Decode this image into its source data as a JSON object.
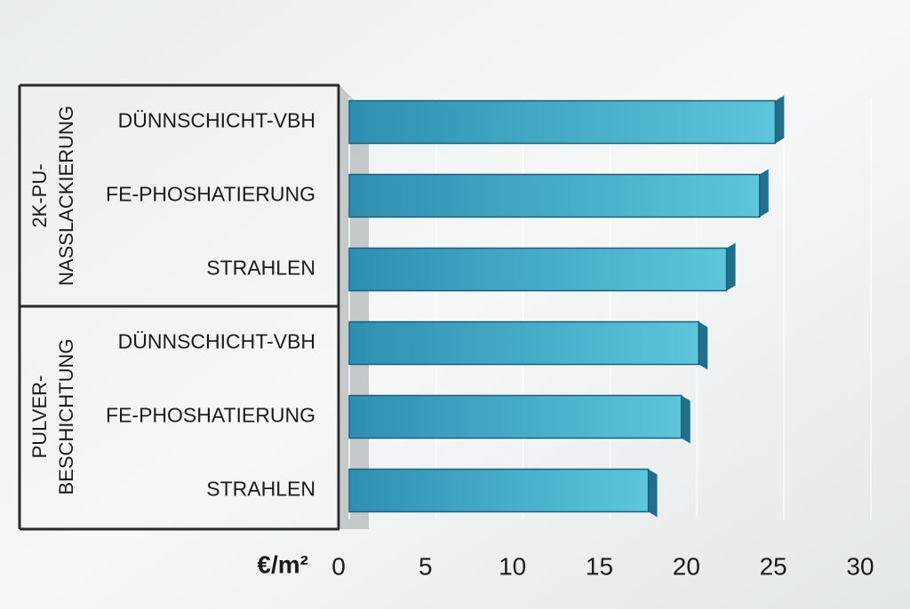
{
  "chart_data": {
    "type": "bar",
    "groups": [
      {
        "label": [
          "2K-PU-",
          "NASSLACKIERUNG"
        ],
        "categories": [
          "DÜNNSCHICHT-VBH",
          "FE-PHOSHATIERUNG",
          "STRAHLEN"
        ],
        "values": [
          24.5,
          23.6,
          21.7
        ]
      },
      {
        "label": [
          "PULVER-",
          "BESCHICHTUNG"
        ],
        "categories": [
          "DÜNNSCHICHT-VBH",
          "FE-PHOSHATIERUNG",
          "STRAHLEN"
        ],
        "values": [
          20.1,
          19.1,
          17.2
        ]
      }
    ],
    "x_label": "€/m²",
    "xlim": [
      0,
      30
    ],
    "xticks": [
      0,
      5,
      10,
      15,
      20,
      25,
      30
    ],
    "color": "#3a9ec0",
    "grid": true
  }
}
